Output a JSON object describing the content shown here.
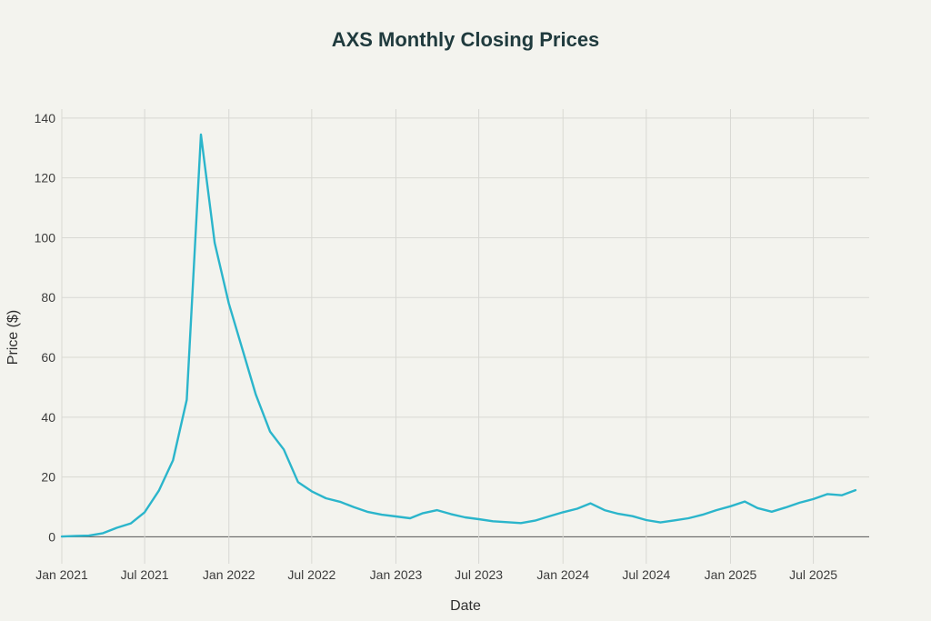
{
  "colors": {
    "background": "#f3f3ee",
    "line": "#2bb5cb",
    "grid": "#d8d8d3",
    "title": "#1f3a3d"
  },
  "chart_data": {
    "type": "line",
    "title": "AXS Monthly Closing Prices",
    "xlabel": "Date",
    "ylabel": "Price ($)",
    "ylim": [
      -9,
      143
    ],
    "yticks": [
      0,
      20,
      40,
      60,
      80,
      100,
      120,
      140
    ],
    "xlim": [
      "2021-01-01",
      "2025-10-31"
    ],
    "xticks": [
      {
        "date": "2021-01-01",
        "label": "Jan 2021"
      },
      {
        "date": "2021-07-01",
        "label": "Jul 2021"
      },
      {
        "date": "2022-01-01",
        "label": "Jan 2022"
      },
      {
        "date": "2022-07-01",
        "label": "Jul 2022"
      },
      {
        "date": "2023-01-01",
        "label": "Jan 2023"
      },
      {
        "date": "2023-07-01",
        "label": "Jul 2023"
      },
      {
        "date": "2024-01-01",
        "label": "Jan 2024"
      },
      {
        "date": "2024-07-01",
        "label": "Jul 2024"
      },
      {
        "date": "2025-01-01",
        "label": "Jan 2025"
      },
      {
        "date": "2025-07-01",
        "label": "Jul 2025"
      }
    ],
    "grid": true,
    "series": [
      {
        "x": [
          "2021-01-01",
          "2021-02-01",
          "2021-03-01",
          "2021-04-01",
          "2021-05-01",
          "2021-06-01",
          "2021-07-01",
          "2021-08-01",
          "2021-09-01",
          "2021-10-01",
          "2021-11-01",
          "2021-12-01",
          "2022-01-01",
          "2022-02-01",
          "2022-03-01",
          "2022-04-01",
          "2022-05-01",
          "2022-06-01",
          "2022-07-01",
          "2022-08-01",
          "2022-09-01",
          "2022-10-01",
          "2022-11-01",
          "2022-12-01",
          "2023-01-01",
          "2023-02-01",
          "2023-03-01",
          "2023-04-01",
          "2023-05-01",
          "2023-06-01",
          "2023-07-01",
          "2023-08-01",
          "2023-09-01",
          "2023-10-01",
          "2023-11-01",
          "2023-12-01",
          "2024-01-01",
          "2024-02-01",
          "2024-03-01",
          "2024-04-01",
          "2024-05-01",
          "2024-06-01",
          "2024-07-01",
          "2024-08-01",
          "2024-09-01",
          "2024-10-01",
          "2024-11-01",
          "2024-12-01",
          "2025-01-01",
          "2025-02-01",
          "2025-03-01",
          "2025-04-01",
          "2025-05-01",
          "2025-06-01",
          "2025-07-01",
          "2025-08-01",
          "2025-09-01",
          "2025-10-01"
        ],
        "values": [
          0.1,
          0.3,
          0.4,
          1.2,
          3.0,
          4.5,
          8.2,
          15.4,
          25.6,
          45.8,
          134.5,
          98.3,
          78.0,
          62.0,
          47.5,
          35.2,
          29.2,
          18.3,
          15.2,
          12.9,
          11.7,
          9.9,
          8.3,
          7.4,
          6.8,
          6.2,
          7.9,
          8.9,
          7.6,
          6.5,
          5.9,
          5.2,
          4.9,
          4.6,
          5.4,
          6.8,
          8.2,
          9.4,
          11.2,
          8.9,
          7.7,
          6.9,
          5.6,
          4.8,
          5.5,
          6.2,
          7.4,
          8.9,
          10.2,
          11.8,
          9.6,
          8.4,
          9.8,
          11.4,
          12.6,
          14.3,
          13.9,
          15.6
        ]
      }
    ]
  }
}
